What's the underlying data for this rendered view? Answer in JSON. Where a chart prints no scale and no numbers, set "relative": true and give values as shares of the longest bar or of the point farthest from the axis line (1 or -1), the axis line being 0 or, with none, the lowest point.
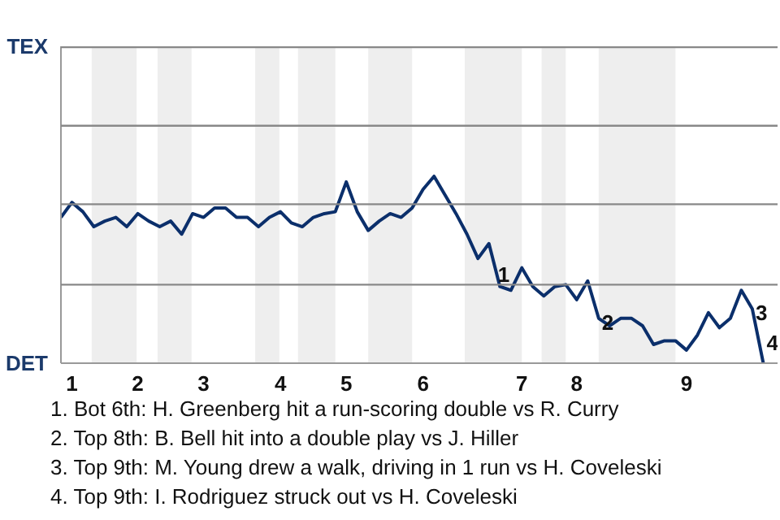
{
  "chart_data": {
    "type": "line",
    "relative": true,
    "categories": [
      null,
      "1",
      null,
      null,
      null,
      null,
      null,
      "2",
      null,
      null,
      null,
      null,
      null,
      "3",
      null,
      null,
      null,
      null,
      null,
      null,
      "4",
      null,
      null,
      null,
      null,
      null,
      "5",
      null,
      null,
      null,
      null,
      null,
      null,
      "6",
      null,
      null,
      null,
      null,
      null,
      null,
      null,
      null,
      "7",
      null,
      null,
      null,
      null,
      "8",
      null,
      null,
      null,
      null,
      null,
      null,
      null,
      null,
      null,
      "9",
      null,
      null,
      null,
      null,
      null,
      null,
      null
    ],
    "series": [
      {
        "color": "#0b2f6b",
        "values": [
          0.78,
          0.86,
          0.81,
          0.73,
          0.76,
          0.78,
          0.73,
          0.8,
          0.76,
          0.73,
          0.76,
          0.69,
          0.8,
          0.78,
          0.83,
          0.83,
          0.78,
          0.78,
          0.73,
          0.78,
          0.81,
          0.75,
          0.73,
          0.78,
          0.8,
          0.81,
          0.97,
          0.81,
          0.71,
          0.76,
          0.8,
          0.78,
          0.83,
          0.93,
          1,
          0.9,
          0.8,
          0.69,
          0.56,
          0.64,
          0.41,
          0.39,
          0.51,
          0.41,
          0.36,
          0.41,
          0.42,
          0.34,
          0.44,
          0.24,
          0.2,
          0.24,
          0.24,
          0.2,
          0.1,
          0.12,
          0.12,
          0.07,
          0.15,
          0.27,
          0.19,
          0.24,
          0.39,
          0.29,
          0
        ]
      }
    ],
    "marker": "none",
    "line_style": "solid",
    "ref_lines": [
      {
        "axis": "y",
        "value": 0.42,
        "label": null,
        "color": "#888888"
      },
      {
        "axis": "y",
        "value": 0.85,
        "label": null,
        "color": "#888888"
      },
      {
        "axis": "y",
        "value": 1.27,
        "label": null,
        "color": "#888888"
      },
      {
        "axis": "y",
        "value": 1.69,
        "label": null,
        "color": "#888888"
      }
    ],
    "annotations": [
      "TEX",
      "DET",
      {
        "text": "1",
        "y": 0.39
      },
      {
        "text": "2",
        "y": 0.24
      },
      {
        "text": "3",
        "y": 0.29
      },
      "4",
      "1. Bot 6th: H. Greenberg hit a run-scoring double vs R. Curry",
      "2. Top 8th: B. Bell hit into a double play vs J. Hiller",
      "3. Top 9th: M. Young drew a walk, driving in 1 run vs H. Coveleski",
      "4. Top 9th: I. Rodriguez struck out vs H. Coveleski"
    ]
  }
}
